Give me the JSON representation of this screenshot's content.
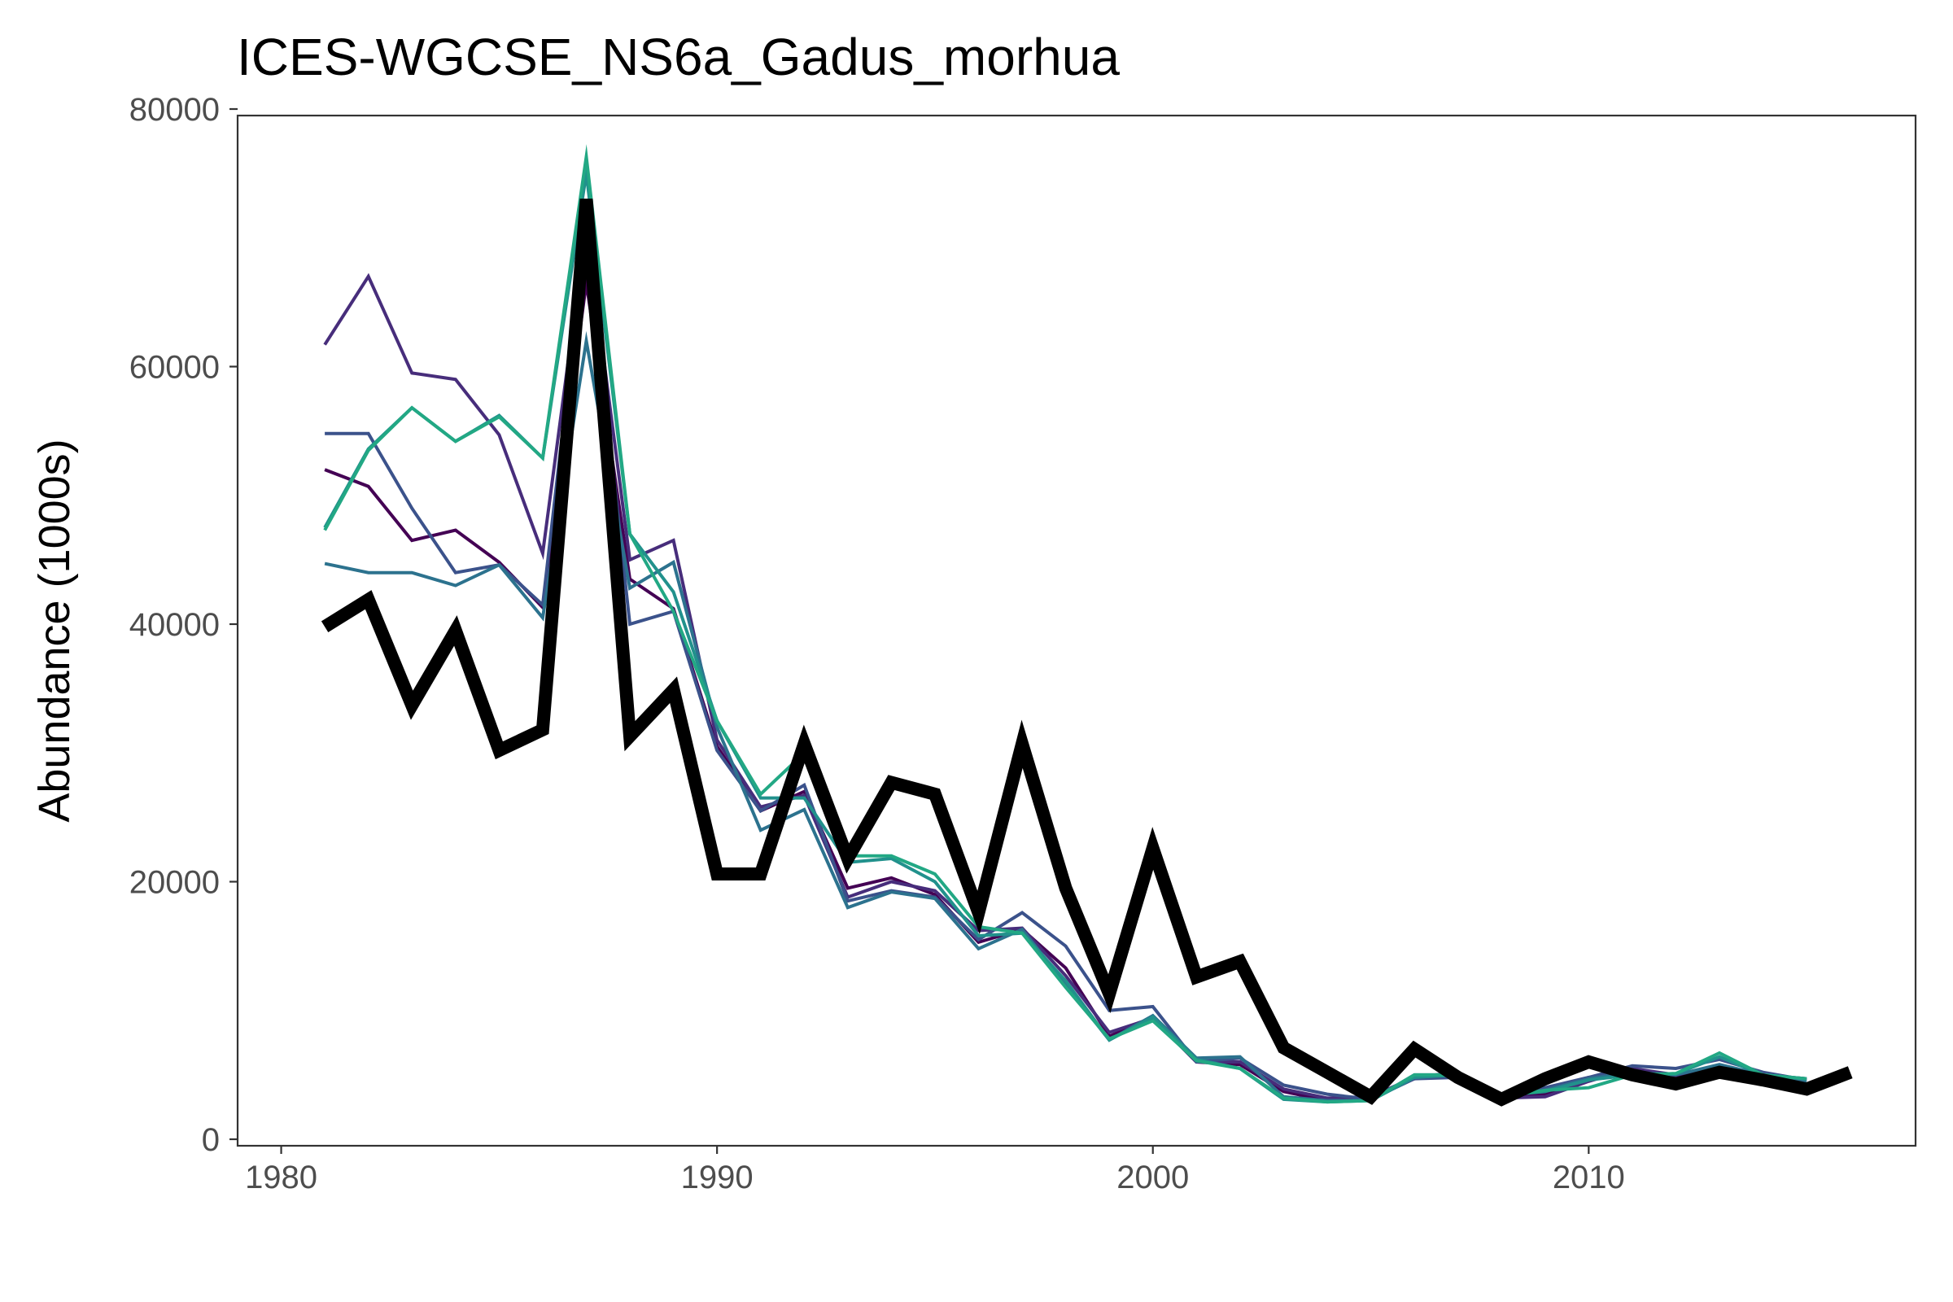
{
  "chart_data": {
    "type": "line",
    "title": "ICES-WGCSE_NS6a_Gadus_morhua",
    "xlabel": "",
    "ylabel": "Abundance (1000s)",
    "xlim": [
      1979,
      2017.5
    ],
    "ylim": [
      0,
      80000
    ],
    "x_ticks": [
      1980,
      1990,
      2000,
      2010
    ],
    "y_ticks": [
      0,
      20000,
      40000,
      60000,
      80000
    ],
    "x_tick_labels": [
      "1980",
      "1990",
      "2000",
      "2010"
    ],
    "y_tick_labels": [
      "0",
      "20000",
      "40000",
      "60000",
      "80000"
    ],
    "grid": false,
    "legend": "none",
    "x": [
      1981,
      1982,
      1983,
      1984,
      1985,
      1986,
      1987,
      1988,
      1989,
      1990,
      1991,
      1992,
      1993,
      1994,
      1995,
      1996,
      1997,
      1998,
      1999,
      2000,
      2001,
      2002,
      2003,
      2004,
      2005,
      2006,
      2007,
      2008,
      2009,
      2010,
      2011,
      2012,
      2013,
      2014,
      2015,
      2016
    ],
    "series": [
      {
        "color": "#440154",
        "width": 4,
        "values": [
          52000,
          50700,
          46500,
          47300,
          44800,
          41300,
          66500,
          43500,
          41200,
          30500,
          25500,
          27000,
          19500,
          20300,
          19000,
          15300,
          16300,
          13300,
          8000,
          9400,
          6000,
          5800,
          3700,
          3000,
          3300,
          4700,
          5000,
          3300,
          3500,
          4800,
          5000,
          4800,
          5500,
          5000,
          4600,
          null
        ]
      },
      {
        "color": "#472d7b",
        "width": 4,
        "values": [
          61700,
          67000,
          59500,
          59000,
          54700,
          45500,
          71000,
          45000,
          46500,
          31000,
          25800,
          26700,
          18800,
          20000,
          19300,
          16200,
          16400,
          12700,
          8300,
          9400,
          6000,
          6000,
          3900,
          3200,
          3300,
          4800,
          5200,
          3200,
          3300,
          4500,
          5500,
          5000,
          5700,
          5000,
          4700,
          null
        ]
      },
      {
        "color": "#3b528b",
        "width": 4,
        "values": [
          54800,
          54800,
          49000,
          44000,
          44600,
          41500,
          71000,
          40000,
          41000,
          30200,
          25500,
          27500,
          18500,
          19300,
          18800,
          15500,
          17600,
          15000,
          10000,
          10300,
          6000,
          6300,
          4200,
          3500,
          3100,
          4700,
          4800,
          3500,
          4000,
          4800,
          5700,
          5500,
          6200,
          5200,
          4600,
          null
        ]
      },
      {
        "color": "#2c728e",
        "width": 4,
        "values": [
          44700,
          44000,
          44000,
          43000,
          44600,
          40500,
          62000,
          42800,
          44800,
          32000,
          24000,
          25600,
          18000,
          19200,
          18700,
          14800,
          16300,
          12000,
          7700,
          9600,
          6300,
          6400,
          3300,
          3000,
          3000,
          5000,
          5000,
          3300,
          3800,
          4700,
          5200,
          5000,
          5800,
          5000,
          4500,
          null
        ]
      },
      {
        "color": "#21918c",
        "width": 4,
        "values": [
          47500,
          53600,
          56800,
          54200,
          56200,
          52900,
          75000,
          47000,
          42500,
          32500,
          26500,
          26500,
          21500,
          21800,
          20000,
          15800,
          16000,
          12300,
          7700,
          9500,
          6200,
          5500,
          3100,
          2900,
          3000,
          4800,
          5000,
          3400,
          3700,
          4600,
          5000,
          5100,
          6400,
          5000,
          4700,
          null
        ]
      },
      {
        "color": "#22a884",
        "width": 4,
        "values": [
          47300,
          53500,
          56800,
          54200,
          56100,
          52900,
          76300,
          47000,
          41000,
          32500,
          26800,
          30000,
          22000,
          22000,
          20600,
          16500,
          16000,
          11800,
          7800,
          9200,
          6100,
          5500,
          3200,
          2900,
          3000,
          5000,
          5000,
          3300,
          3800,
          4000,
          5000,
          5100,
          6700,
          5000,
          4700,
          null
        ]
      },
      {
        "color": "#000000",
        "width": 16,
        "values": [
          39800,
          41900,
          33700,
          39500,
          30200,
          31800,
          73000,
          31300,
          34900,
          20600,
          20600,
          30700,
          21800,
          27700,
          26800,
          17600,
          30700,
          19500,
          11300,
          22600,
          12600,
          13800,
          7100,
          5200,
          3300,
          7000,
          4800,
          3100,
          4700,
          6000,
          5000,
          4300,
          5200,
          4600,
          3900,
          5200
        ]
      }
    ]
  }
}
